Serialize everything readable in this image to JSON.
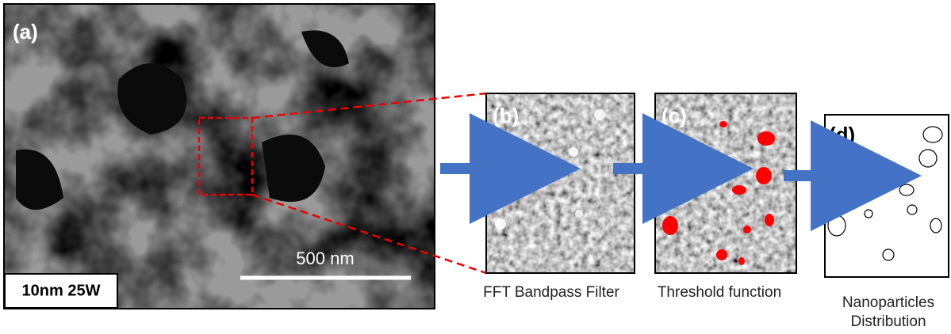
{
  "panels": {
    "a": "(a)",
    "b": "(b)",
    "c": "(c)",
    "d": "(d)"
  },
  "scale_bar": "500 nm",
  "sample_label": "10nm 25W",
  "captions": {
    "b": "FFT Bandpass Filter",
    "c": "Threshold function",
    "d": [
      "Nanoparticles",
      "Distribution"
    ]
  }
}
